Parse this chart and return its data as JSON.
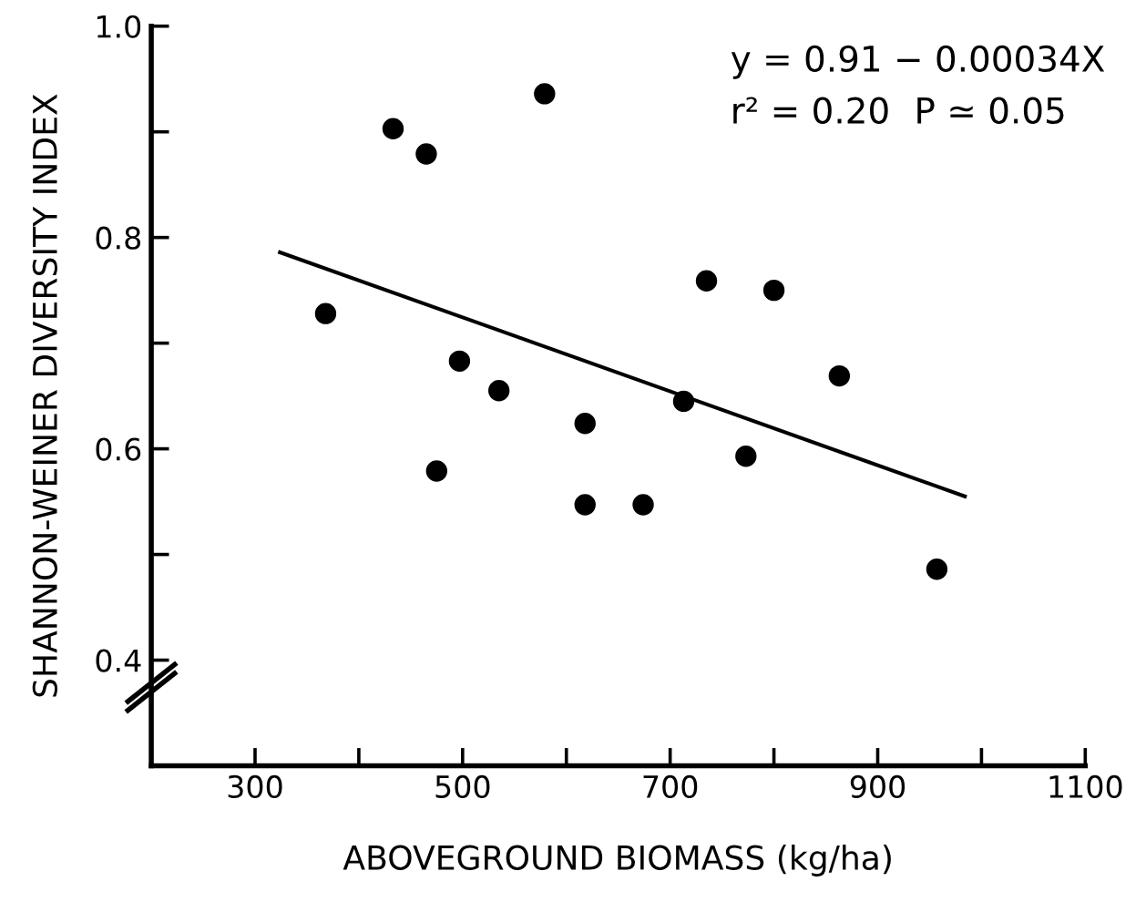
{
  "chart_data": {
    "type": "scatter",
    "xlabel": "ABOVEGROUND BIOMASS (kg/ha)",
    "ylabel": "SHANNON-WEINER DIVERSITY INDEX",
    "xlim": [
      200,
      1100
    ],
    "ylim": [
      0.3,
      1.0
    ],
    "xticks": [
      300,
      {
        "value": 400,
        "label": null
      },
      500,
      {
        "value": 600,
        "label": null
      },
      700,
      {
        "value": 800,
        "label": null
      },
      900,
      {
        "value": 1000,
        "label": null
      },
      1100
    ],
    "yticks": [
      0.4,
      {
        "value": 0.5,
        "label": null
      },
      0.6,
      {
        "value": 0.7,
        "label": null
      },
      0.8,
      {
        "value": 0.9,
        "label": null
      },
      {
        "value": 1.0,
        "label": "1.0"
      }
    ],
    "grid": false,
    "legend": false,
    "series": [
      {
        "marker": "circle",
        "color": "#000000",
        "x": [
          368,
          433,
          465,
          579,
          735,
          800,
          497,
          535,
          863,
          618,
          713,
          475,
          618,
          674,
          773,
          957
        ],
        "values": [
          0.728,
          0.903,
          0.879,
          0.936,
          0.759,
          0.75,
          0.683,
          0.655,
          0.669,
          0.624,
          0.645,
          0.579,
          0.547,
          0.547,
          0.593,
          0.486
        ]
      },
      {
        "type": "line",
        "color": "#000000",
        "line_style": "solid",
        "x": [
          324,
          984
        ],
        "values": [
          0.786,
          0.555
        ]
      }
    ],
    "annotations": [
      "y = 0.91 − 0.00034X",
      "r² = 0.20",
      "P ≃ 0.05"
    ]
  }
}
